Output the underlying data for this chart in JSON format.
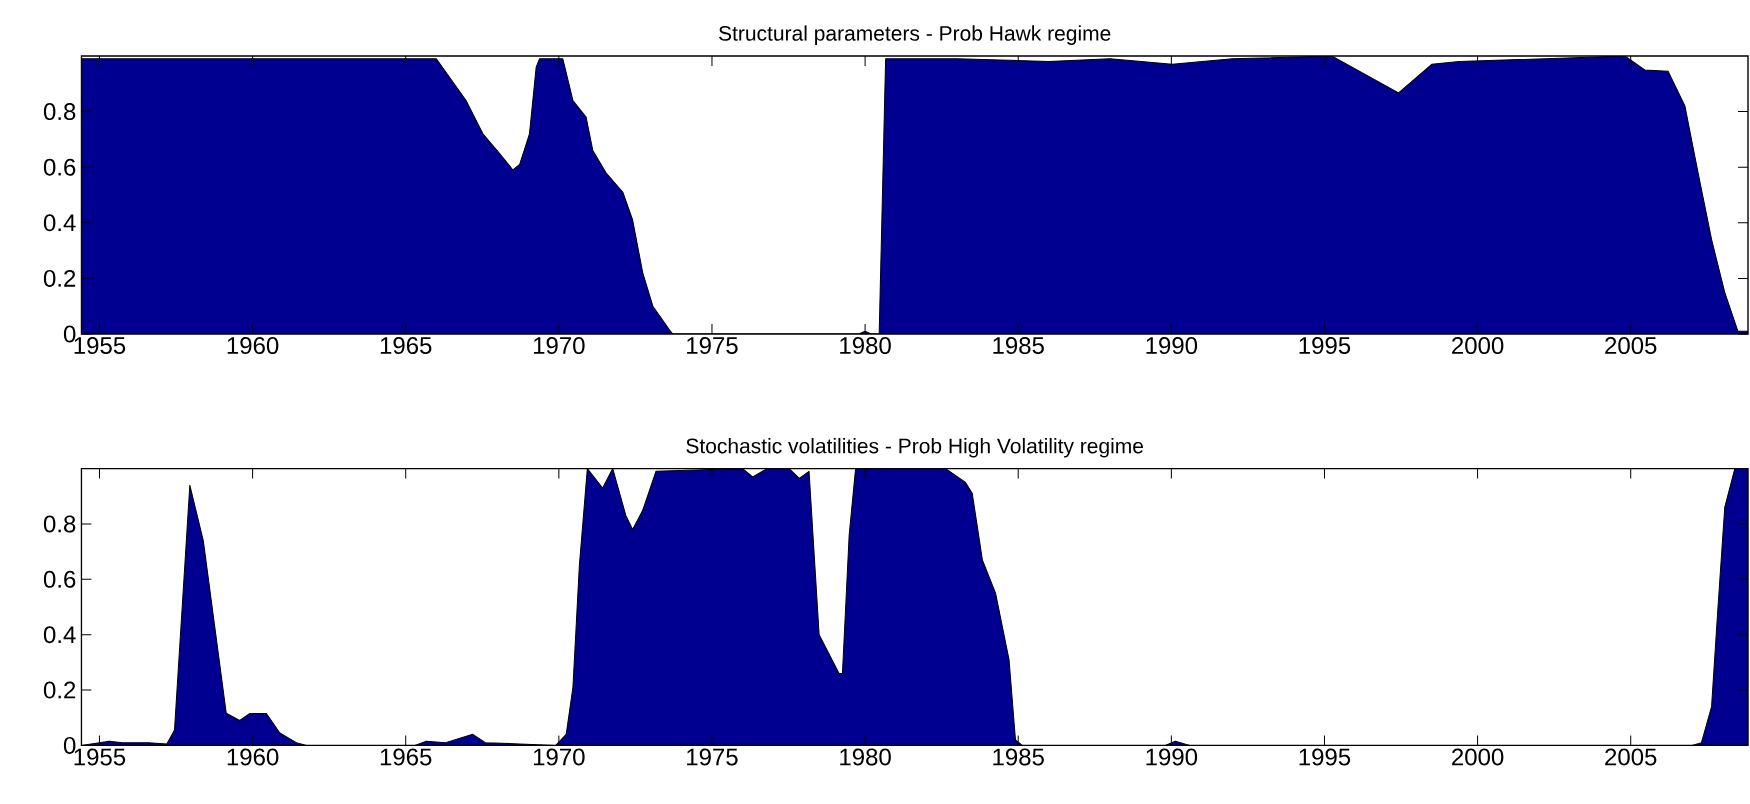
{
  "chart_data": [
    {
      "type": "area",
      "title": "Structural parameters - Prob Hawk regime",
      "color": "#000090",
      "xlim": [
        1954.41,
        2008.83
      ],
      "ylim": [
        0,
        1
      ],
      "xticks": [
        1955,
        1960,
        1965,
        1970,
        1975,
        1980,
        1985,
        1990,
        1995,
        2000,
        2005
      ],
      "yticks": [
        0,
        0.2,
        0.4,
        0.6,
        0.8
      ],
      "x": [
        1954.41,
        1958,
        1962,
        1966.0,
        1966.97,
        1967.52,
        1968.06,
        1968.5,
        1968.72,
        1969.04,
        1969.26,
        1969.37,
        1970.13,
        1970.46,
        1970.89,
        1971.11,
        1971.54,
        1972.09,
        1972.41,
        1972.74,
        1973.07,
        1973.61,
        1973.72,
        1979.8,
        1980.0,
        1980.2,
        1980.46,
        1980.67,
        1983,
        1986,
        1988,
        1990.03,
        1992,
        1995.24,
        1997.42,
        1998.5,
        1999.4,
        2004.81,
        2005.46,
        2006.22,
        2006.77,
        2007.2,
        2007.64,
        2008.07,
        2008.5,
        2008.83
      ],
      "values": [
        0.99,
        0.99,
        0.99,
        0.99,
        0.84,
        0.72,
        0.65,
        0.59,
        0.61,
        0.72,
        0.96,
        0.99,
        0.99,
        0.84,
        0.78,
        0.66,
        0.58,
        0.51,
        0.41,
        0.22,
        0.1,
        0.015,
        0,
        0,
        0.01,
        0,
        0,
        0.99,
        0.99,
        0.98,
        0.99,
        0.97,
        0.99,
        1.0,
        0.867,
        0.97,
        0.98,
        1.0,
        0.95,
        0.945,
        0.82,
        0.58,
        0.34,
        0.15,
        0.01,
        0.01
      ]
    },
    {
      "type": "area",
      "title": "Stochastic volatilities - Prob High Volatility regime",
      "color": "#000090",
      "xlim": [
        1954.41,
        2008.83
      ],
      "ylim": [
        0,
        1
      ],
      "xticks": [
        1955,
        1960,
        1965,
        1970,
        1975,
        1980,
        1985,
        1990,
        1995,
        2000,
        2005
      ],
      "yticks": [
        0,
        0.2,
        0.4,
        0.6,
        0.8
      ],
      "x": [
        1954.41,
        1955.32,
        1955.75,
        1956.6,
        1957.2,
        1957.45,
        1957.95,
        1958.39,
        1959.14,
        1959.58,
        1959.9,
        1960.45,
        1960.89,
        1961.43,
        1961.76,
        1965.3,
        1965.67,
        1966.3,
        1967.19,
        1967.6,
        1969.9,
        1970.24,
        1970.46,
        1970.67,
        1970.93,
        1971.43,
        1971.76,
        1972.19,
        1972.41,
        1972.74,
        1973.17,
        1976.0,
        1976.33,
        1976.8,
        1977.52,
        1977.85,
        1978.17,
        1978.5,
        1979.15,
        1979.26,
        1979.48,
        1979.69,
        1982.63,
        1983.28,
        1983.5,
        1983.83,
        1984.26,
        1984.48,
        1984.7,
        1984.91,
        1985.13,
        1989.8,
        1990.13,
        1990.6,
        2007.0,
        2007.31,
        2007.64,
        2007.85,
        2008.07,
        2008.4,
        2008.83
      ],
      "values": [
        0,
        0.015,
        0.01,
        0.01,
        0.005,
        0.056,
        0.94,
        0.74,
        0.116,
        0.09,
        0.115,
        0.115,
        0.045,
        0.01,
        0,
        0,
        0.015,
        0.01,
        0.04,
        0.01,
        0,
        0.04,
        0.21,
        0.65,
        1.0,
        0.93,
        1.0,
        0.83,
        0.78,
        0.85,
        0.99,
        1.0,
        0.97,
        1.0,
        1.0,
        0.965,
        0.99,
        0.4,
        0.26,
        0.26,
        0.76,
        1.0,
        1.0,
        0.95,
        0.91,
        0.67,
        0.55,
        0.43,
        0.31,
        0.02,
        0,
        0,
        0.015,
        0,
        0,
        0.01,
        0.14,
        0.5,
        0.86,
        1.0,
        1.0
      ]
    }
  ]
}
